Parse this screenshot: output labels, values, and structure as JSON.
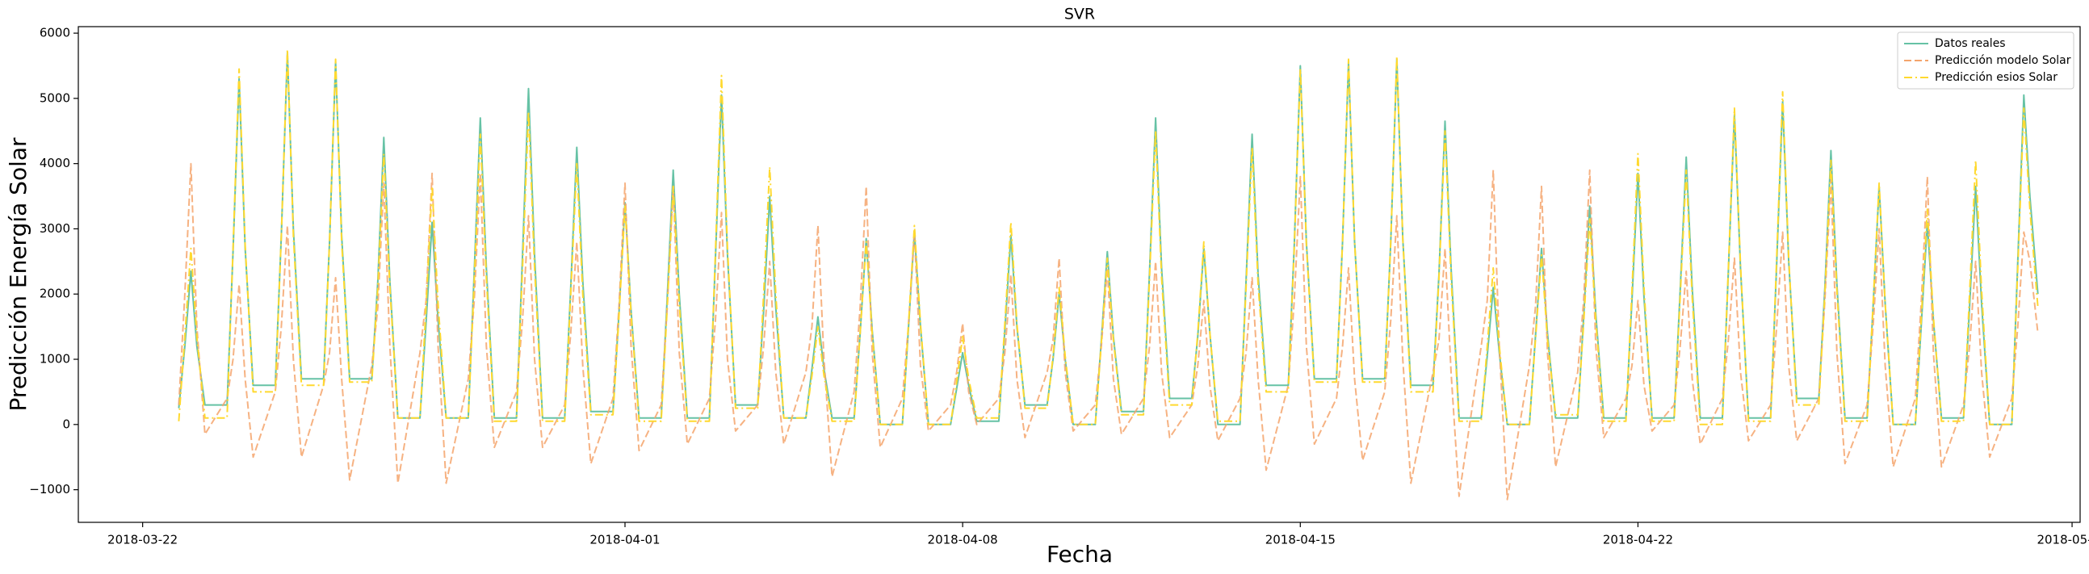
{
  "chart_data": {
    "type": "line",
    "title": "SVR",
    "xlabel": "Fecha",
    "ylabel": "Predicción Energía Solar",
    "xlim": [
      "2018-03-20 16:00",
      "2018-05-01 04:00"
    ],
    "xticks": [
      "2018-03-22",
      "2018-04-01",
      "2018-04-08",
      "2018-04-15",
      "2018-04-22",
      "2018-05-01"
    ],
    "ylim": [
      -1500,
      6100
    ],
    "yticks": [
      {
        "value": -1000,
        "label": "−1000"
      },
      0,
      1000,
      2000,
      3000,
      4000,
      5000,
      6000
    ],
    "legend": "upper right",
    "x": [
      "2018-03-22 18:00",
      "2018-03-22 21:00",
      "2018-03-23 00:00",
      "2018-03-23 03:00",
      "2018-03-23 07:00",
      "2018-03-23 18:00",
      "2018-03-23 21:00",
      "2018-03-24 00:00",
      "2018-03-24 03:00",
      "2018-03-24 07:00",
      "2018-03-24 18:00",
      "2018-03-24 21:00",
      "2018-03-25 00:00",
      "2018-03-25 03:00",
      "2018-03-25 07:00",
      "2018-03-25 18:00",
      "2018-03-25 21:00",
      "2018-03-26 00:00",
      "2018-03-26 03:00",
      "2018-03-26 07:00",
      "2018-03-26 18:00",
      "2018-03-26 21:00",
      "2018-03-27 00:00",
      "2018-03-27 03:00",
      "2018-03-27 07:00",
      "2018-03-27 18:00",
      "2018-03-27 21:00",
      "2018-03-28 00:00",
      "2018-03-28 03:00",
      "2018-03-28 07:00",
      "2018-03-28 18:00",
      "2018-03-28 21:00",
      "2018-03-29 00:00",
      "2018-03-29 03:00",
      "2018-03-29 07:00",
      "2018-03-29 18:00",
      "2018-03-29 21:00",
      "2018-03-30 00:00",
      "2018-03-30 03:00",
      "2018-03-30 07:00",
      "2018-03-30 18:00",
      "2018-03-30 21:00",
      "2018-03-31 00:00",
      "2018-03-31 03:00",
      "2018-03-31 07:00",
      "2018-03-31 18:00",
      "2018-03-31 21:00",
      "2018-04-01 00:00",
      "2018-04-01 03:00",
      "2018-04-01 07:00",
      "2018-04-01 18:00",
      "2018-04-01 21:00",
      "2018-04-02 00:00",
      "2018-04-02 03:00",
      "2018-04-02 07:00",
      "2018-04-02 18:00",
      "2018-04-02 21:00",
      "2018-04-03 00:00",
      "2018-04-03 03:00",
      "2018-04-03 07:00",
      "2018-04-03 18:00",
      "2018-04-03 21:00",
      "2018-04-04 00:00",
      "2018-04-04 03:00",
      "2018-04-04 07:00",
      "2018-04-04 18:00",
      "2018-04-04 21:00",
      "2018-04-05 00:00",
      "2018-04-05 03:00",
      "2018-04-05 07:00",
      "2018-04-05 18:00",
      "2018-04-05 21:00",
      "2018-04-06 00:00",
      "2018-04-06 03:00",
      "2018-04-06 07:00",
      "2018-04-06 18:00",
      "2018-04-06 21:00",
      "2018-04-07 00:00",
      "2018-04-07 03:00",
      "2018-04-07 07:00",
      "2018-04-07 18:00",
      "2018-04-07 21:00",
      "2018-04-08 00:00",
      "2018-04-08 03:00",
      "2018-04-08 07:00",
      "2018-04-08 18:00",
      "2018-04-08 21:00",
      "2018-04-09 00:00",
      "2018-04-09 03:00",
      "2018-04-09 07:00",
      "2018-04-09 18:00",
      "2018-04-09 21:00",
      "2018-04-10 00:00",
      "2018-04-10 03:00",
      "2018-04-10 07:00",
      "2018-04-10 18:00",
      "2018-04-10 21:00",
      "2018-04-11 00:00",
      "2018-04-11 03:00",
      "2018-04-11 07:00",
      "2018-04-11 18:00",
      "2018-04-11 21:00",
      "2018-04-12 00:00",
      "2018-04-12 03:00",
      "2018-04-12 07:00",
      "2018-04-12 18:00",
      "2018-04-12 21:00",
      "2018-04-13 00:00",
      "2018-04-13 03:00",
      "2018-04-13 07:00",
      "2018-04-13 18:00",
      "2018-04-13 21:00",
      "2018-04-14 00:00",
      "2018-04-14 03:00",
      "2018-04-14 07:00",
      "2018-04-14 18:00",
      "2018-04-14 21:00",
      "2018-04-15 00:00",
      "2018-04-15 03:00",
      "2018-04-15 07:00",
      "2018-04-15 18:00",
      "2018-04-15 21:00",
      "2018-04-16 00:00",
      "2018-04-16 03:00",
      "2018-04-16 07:00",
      "2018-04-16 18:00",
      "2018-04-16 21:00",
      "2018-04-17 00:00",
      "2018-04-17 03:00",
      "2018-04-17 07:00",
      "2018-04-17 18:00",
      "2018-04-17 21:00",
      "2018-04-18 00:00",
      "2018-04-18 03:00",
      "2018-04-18 07:00",
      "2018-04-18 18:00",
      "2018-04-18 21:00",
      "2018-04-19 00:00",
      "2018-04-19 03:00",
      "2018-04-19 07:00",
      "2018-04-19 18:00",
      "2018-04-19 21:00",
      "2018-04-20 00:00",
      "2018-04-20 03:00",
      "2018-04-20 07:00",
      "2018-04-20 18:00",
      "2018-04-20 21:00",
      "2018-04-21 00:00",
      "2018-04-21 03:00",
      "2018-04-21 07:00",
      "2018-04-21 18:00",
      "2018-04-21 21:00",
      "2018-04-22 00:00",
      "2018-04-22 03:00",
      "2018-04-22 07:00",
      "2018-04-22 18:00",
      "2018-04-22 21:00",
      "2018-04-23 00:00",
      "2018-04-23 03:00",
      "2018-04-23 07:00",
      "2018-04-23 18:00",
      "2018-04-23 21:00",
      "2018-04-24 00:00",
      "2018-04-24 03:00",
      "2018-04-24 07:00",
      "2018-04-24 18:00",
      "2018-04-24 21:00",
      "2018-04-25 00:00",
      "2018-04-25 03:00",
      "2018-04-25 07:00",
      "2018-04-25 18:00",
      "2018-04-25 21:00",
      "2018-04-26 00:00",
      "2018-04-26 03:00",
      "2018-04-26 07:00",
      "2018-04-26 18:00",
      "2018-04-26 21:00",
      "2018-04-27 00:00",
      "2018-04-27 03:00",
      "2018-04-27 07:00",
      "2018-04-27 18:00",
      "2018-04-27 21:00",
      "2018-04-28 00:00",
      "2018-04-28 03:00",
      "2018-04-28 07:00",
      "2018-04-28 18:00",
      "2018-04-28 21:00",
      "2018-04-29 00:00",
      "2018-04-29 03:00",
      "2018-04-29 07:00",
      "2018-04-29 18:00",
      "2018-04-29 21:00",
      "2018-04-30 00:00",
      "2018-04-30 03:00",
      "2018-04-30 07:00"
    ],
    "series": [
      {
        "name": "Datos reales",
        "color": "#66c2a5",
        "linestyle": "solid",
        "values": [
          250,
          1200,
          2350,
          1200,
          300,
          300,
          2650,
          5300,
          2700,
          600,
          600,
          2900,
          5700,
          3000,
          700,
          700,
          2800,
          5550,
          2900,
          700,
          700,
          2200,
          4400,
          2200,
          100,
          100,
          1550,
          3100,
          1600,
          100,
          100,
          2350,
          4700,
          2400,
          100,
          100,
          2600,
          5150,
          2600,
          100,
          100,
          2100,
          4250,
          2200,
          200,
          200,
          1700,
          3400,
          1750,
          100,
          100,
          1950,
          3900,
          2000,
          100,
          100,
          2550,
          5050,
          2600,
          300,
          300,
          1750,
          3500,
          1800,
          100,
          100,
          850,
          1650,
          850,
          100,
          100,
          1400,
          2850,
          1450,
          0,
          0,
          1450,
          2950,
          1500,
          0,
          0,
          550,
          1100,
          600,
          50,
          50,
          1450,
          2900,
          1500,
          300,
          300,
          1000,
          2000,
          1000,
          0,
          0,
          1300,
          2650,
          1350,
          200,
          200,
          2350,
          4700,
          2400,
          400,
          400,
          1350,
          2700,
          1400,
          0,
          0,
          2200,
          4450,
          2300,
          600,
          600,
          2750,
          5500,
          2800,
          700,
          700,
          2800,
          5550,
          2800,
          700,
          700,
          2800,
          5600,
          2850,
          600,
          600,
          2300,
          4650,
          2400,
          100,
          100,
          1050,
          2100,
          1100,
          0,
          0,
          1350,
          2700,
          1400,
          100,
          100,
          1650,
          3350,
          1700,
          100,
          100,
          1900,
          3850,
          1950,
          100,
          100,
          2050,
          4100,
          2100,
          100,
          100,
          2350,
          4750,
          2400,
          100,
          100,
          2450,
          4950,
          2500,
          400,
          400,
          2100,
          4200,
          2150,
          100,
          100,
          1800,
          3650,
          1850,
          0,
          0,
          1550,
          3100,
          1600,
          100,
          100,
          1800,
          3650,
          1850,
          0,
          0,
          2500,
          5050,
          3500,
          2000
        ]
      },
      {
        "name": "Predicción modelo Solar",
        "color": "#f4a46c",
        "linestyle": "dashed",
        "values": [
          300,
          2000,
          4000,
          1500,
          -150,
          400,
          1000,
          2150,
          700,
          -500,
          500,
          1500,
          3050,
          1000,
          -500,
          600,
          1100,
          2250,
          700,
          -850,
          900,
          1800,
          3700,
          1200,
          -900,
          1100,
          1900,
          3850,
          1200,
          -900,
          700,
          1900,
          3850,
          1200,
          -350,
          500,
          1600,
          3200,
          1000,
          -350,
          300,
          1400,
          2800,
          900,
          -600,
          400,
          1800,
          3700,
          1200,
          -400,
          300,
          1800,
          3650,
          1100,
          -300,
          400,
          1600,
          3250,
          1000,
          -100,
          300,
          1200,
          2500,
          800,
          -300,
          800,
          1500,
          3050,
          1000,
          -800,
          500,
          1800,
          3650,
          1100,
          -350,
          400,
          1500,
          2950,
          900,
          -100,
          300,
          800,
          1550,
          500,
          0,
          400,
          1100,
          2300,
          700,
          -200,
          800,
          1300,
          2550,
          800,
          -100,
          300,
          1200,
          2400,
          700,
          -150,
          400,
          1200,
          2500,
          800,
          -200,
          300,
          900,
          1900,
          600,
          -250,
          400,
          1100,
          2250,
          700,
          -700,
          600,
          1900,
          3800,
          1200,
          -300,
          400,
          1200,
          2400,
          700,
          -550,
          500,
          1600,
          3200,
          1000,
          -900,
          800,
          1300,
          2700,
          800,
          -1100,
          1200,
          1900,
          3900,
          1200,
          -1150,
          900,
          1800,
          3650,
          1100,
          -650,
          800,
          1900,
          3900,
          1200,
          -200,
          400,
          900,
          1900,
          600,
          -100,
          300,
          1200,
          2350,
          700,
          -300,
          400,
          1300,
          2550,
          800,
          -250,
          300,
          1500,
          2950,
          900,
          -250,
          400,
          1900,
          3750,
          1100,
          -600,
          300,
          1500,
          3000,
          900,
          -650,
          400,
          1900,
          3800,
          1100,
          -650,
          300,
          1200,
          2500,
          800,
          -500,
          400,
          1500,
          2950,
          2500,
          1400
        ]
      },
      {
        "name": "Predicción esios Solar",
        "color": "#ffd92f",
        "linestyle": "dashdot",
        "values": [
          50,
          1350,
          2700,
          1350,
          100,
          100,
          2700,
          5450,
          2750,
          500,
          500,
          2900,
          5750,
          2900,
          600,
          600,
          2800,
          5600,
          2800,
          650,
          650,
          2100,
          4150,
          2100,
          100,
          100,
          1800,
          3650,
          1850,
          100,
          100,
          2200,
          4450,
          2250,
          50,
          50,
          2400,
          4800,
          2400,
          50,
          50,
          2000,
          4000,
          2000,
          150,
          150,
          1650,
          3350,
          1700,
          50,
          50,
          1800,
          3650,
          1850,
          50,
          50,
          2650,
          5350,
          2700,
          250,
          250,
          2000,
          3950,
          2000,
          100,
          100,
          750,
          1500,
          750,
          50,
          50,
          1400,
          2800,
          1400,
          0,
          0,
          1500,
          3050,
          1550,
          0,
          0,
          650,
          1350,
          700,
          100,
          100,
          1550,
          3100,
          1550,
          250,
          250,
          1050,
          2100,
          1050,
          0,
          0,
          1250,
          2550,
          1300,
          150,
          150,
          2250,
          4500,
          2250,
          300,
          300,
          1400,
          2800,
          1400,
          50,
          50,
          2100,
          4250,
          2150,
          500,
          500,
          2700,
          5450,
          2750,
          650,
          650,
          2800,
          5600,
          2800,
          650,
          650,
          2800,
          5650,
          2850,
          500,
          500,
          2250,
          4500,
          2250,
          50,
          50,
          1200,
          2400,
          1200,
          0,
          0,
          1300,
          2600,
          1300,
          150,
          150,
          1550,
          3150,
          1600,
          50,
          50,
          2050,
          4150,
          2100,
          50,
          50,
          1950,
          3900,
          1950,
          0,
          0,
          2400,
          4850,
          2450,
          50,
          50,
          2550,
          5100,
          2550,
          300,
          300,
          2000,
          4050,
          2050,
          50,
          50,
          1850,
          3700,
          1850,
          0,
          0,
          1650,
          3300,
          1650,
          50,
          50,
          2000,
          4050,
          2050,
          0,
          0,
          2400,
          4850,
          3300,
          1800
        ]
      }
    ]
  }
}
